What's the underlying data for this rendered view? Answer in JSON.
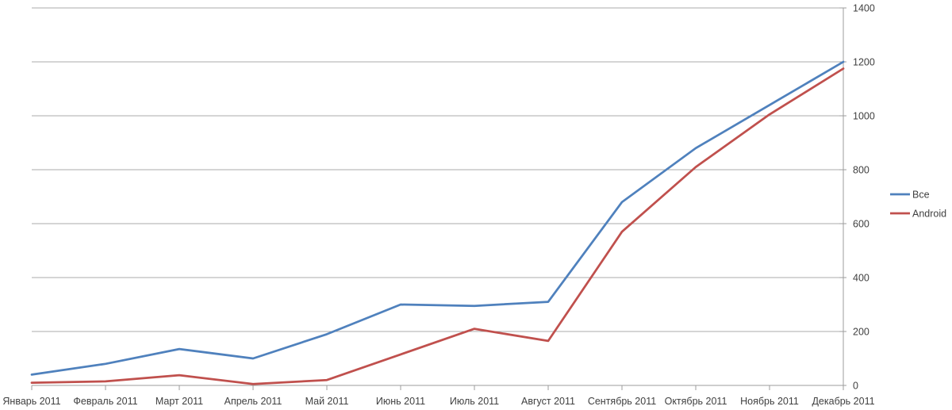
{
  "chart_data": {
    "type": "line",
    "title": "",
    "xlabel": "",
    "ylabel": "",
    "categories": [
      "Январь 2011",
      "Февраль 2011",
      "Март 2011",
      "Апрель 2011",
      "Май 2011",
      "Июнь 2011",
      "Июль 2011",
      "Август 2011",
      "Сентябрь 2011",
      "Октябрь 2011",
      "Ноябрь 2011",
      "Декабрь 2011"
    ],
    "series": [
      {
        "name": "Все",
        "color": "#4F81BD",
        "values": [
          40,
          80,
          135,
          100,
          190,
          300,
          295,
          310,
          680,
          880,
          1040,
          1200
        ]
      },
      {
        "name": "Android",
        "color": "#C0504D",
        "values": [
          10,
          15,
          38,
          5,
          20,
          115,
          210,
          165,
          570,
          810,
          1005,
          1175
        ]
      }
    ],
    "ylim": [
      0,
      1400
    ],
    "yticks": [
      0,
      200,
      400,
      600,
      800,
      1000,
      1200,
      1400
    ],
    "grid": true,
    "y_axis_side": "right",
    "legend_position": "right"
  },
  "colors": {
    "background": "#FFFFFF",
    "gridline": "#ABABAB",
    "axis": "#9C9C9C",
    "text": "#404040",
    "series_all": "#4F81BD",
    "series_android": "#C0504D"
  }
}
